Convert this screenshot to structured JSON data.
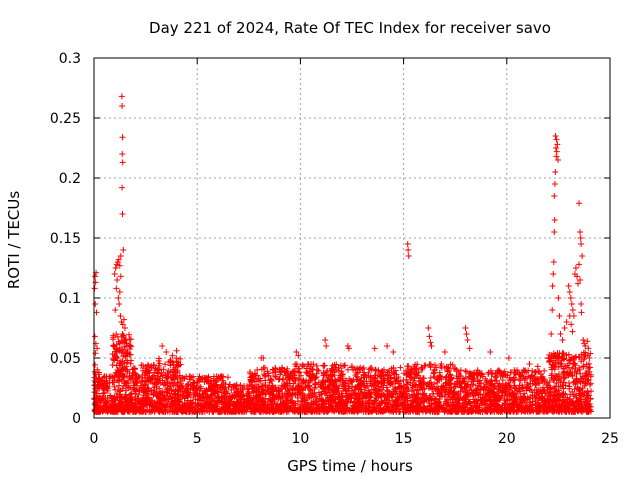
{
  "chart_data": {
    "type": "scatter",
    "title": "Day 221 of 2024, Rate Of TEC Index for receiver savo",
    "xlabel": "GPS time / hours",
    "ylabel": "ROTI / TECUs",
    "xlim": [
      0,
      25
    ],
    "ylim": [
      0,
      0.3
    ],
    "xticks": [
      0,
      5,
      10,
      15,
      20,
      25
    ],
    "yticks": [
      0,
      0.05,
      0.1,
      0.15,
      0.2,
      0.25,
      0.3
    ],
    "xtick_labels": [
      "0",
      "5",
      "10",
      "15",
      "20",
      "25"
    ],
    "ytick_labels": [
      "0",
      "0.05",
      "0.1",
      "0.15",
      "0.2",
      "0.25",
      "0.3"
    ],
    "grid": true,
    "marker": "+",
    "color": "#ff0000",
    "series": [
      {
        "name": "ROTI",
        "bands": [
          {
            "x0": 0.0,
            "x1": 0.3,
            "ymin": 0.005,
            "ymax": 0.045,
            "count": 70
          },
          {
            "x0": 0.3,
            "x1": 0.9,
            "ymin": 0.005,
            "ymax": 0.035,
            "count": 90
          },
          {
            "x0": 0.9,
            "x1": 1.8,
            "ymin": 0.005,
            "ymax": 0.07,
            "count": 260
          },
          {
            "x0": 1.8,
            "x1": 3.0,
            "ymin": 0.005,
            "ymax": 0.045,
            "count": 240
          },
          {
            "x0": 3.0,
            "x1": 4.2,
            "ymin": 0.005,
            "ymax": 0.05,
            "count": 230
          },
          {
            "x0": 4.2,
            "x1": 6.5,
            "ymin": 0.005,
            "ymax": 0.035,
            "count": 380
          },
          {
            "x0": 6.5,
            "x1": 7.5,
            "ymin": 0.005,
            "ymax": 0.028,
            "count": 160
          },
          {
            "x0": 7.5,
            "x1": 9.5,
            "ymin": 0.005,
            "ymax": 0.042,
            "count": 360
          },
          {
            "x0": 9.5,
            "x1": 12.5,
            "ymin": 0.005,
            "ymax": 0.045,
            "count": 520
          },
          {
            "x0": 12.5,
            "x1": 15.0,
            "ymin": 0.005,
            "ymax": 0.042,
            "count": 430
          },
          {
            "x0": 15.0,
            "x1": 17.5,
            "ymin": 0.005,
            "ymax": 0.045,
            "count": 430
          },
          {
            "x0": 17.5,
            "x1": 19.5,
            "ymin": 0.005,
            "ymax": 0.04,
            "count": 340
          },
          {
            "x0": 19.5,
            "x1": 22.0,
            "ymin": 0.005,
            "ymax": 0.04,
            "count": 420
          },
          {
            "x0": 22.0,
            "x1": 24.1,
            "ymin": 0.005,
            "ymax": 0.055,
            "count": 420
          }
        ],
        "points": [
          [
            0.05,
            0.118
          ],
          [
            0.08,
            0.113
          ],
          [
            0.1,
            0.121
          ],
          [
            0.03,
            0.108
          ],
          [
            0.06,
            0.095
          ],
          [
            0.12,
            0.088
          ],
          [
            0.04,
            0.068
          ],
          [
            0.09,
            0.062
          ],
          [
            0.15,
            0.058
          ],
          [
            0.07,
            0.054
          ],
          [
            1.0,
            0.12
          ],
          [
            1.05,
            0.125
          ],
          [
            1.1,
            0.128
          ],
          [
            1.15,
            0.13
          ],
          [
            1.2,
            0.132
          ],
          [
            1.25,
            0.127
          ],
          [
            1.3,
            0.135
          ],
          [
            1.12,
            0.115
          ],
          [
            1.08,
            0.108
          ],
          [
            1.18,
            0.1
          ],
          [
            1.22,
            0.095
          ],
          [
            1.03,
            0.09
          ],
          [
            1.28,
            0.085
          ],
          [
            1.33,
            0.08
          ],
          [
            1.4,
            0.078
          ],
          [
            1.45,
            0.082
          ],
          [
            1.5,
            0.075
          ],
          [
            1.38,
            0.07
          ],
          [
            1.35,
            0.268
          ],
          [
            1.36,
            0.26
          ],
          [
            1.38,
            0.234
          ],
          [
            1.37,
            0.22
          ],
          [
            1.39,
            0.213
          ],
          [
            1.36,
            0.192
          ],
          [
            1.38,
            0.17
          ],
          [
            1.42,
            0.14
          ],
          [
            1.3,
            0.118
          ],
          [
            1.25,
            0.105
          ],
          [
            1.55,
            0.065
          ],
          [
            1.6,
            0.06
          ],
          [
            3.3,
            0.06
          ],
          [
            3.5,
            0.055
          ],
          [
            3.8,
            0.052
          ],
          [
            4.0,
            0.056
          ],
          [
            8.1,
            0.05
          ],
          [
            8.2,
            0.05
          ],
          [
            9.8,
            0.055
          ],
          [
            9.9,
            0.052
          ],
          [
            11.2,
            0.065
          ],
          [
            11.25,
            0.06
          ],
          [
            12.3,
            0.06
          ],
          [
            12.35,
            0.058
          ],
          [
            13.6,
            0.058
          ],
          [
            14.2,
            0.06
          ],
          [
            14.5,
            0.055
          ],
          [
            15.2,
            0.145
          ],
          [
            15.22,
            0.14
          ],
          [
            15.25,
            0.135
          ],
          [
            16.2,
            0.075
          ],
          [
            16.25,
            0.068
          ],
          [
            16.3,
            0.063
          ],
          [
            16.35,
            0.06
          ],
          [
            17.0,
            0.055
          ],
          [
            18.0,
            0.075
          ],
          [
            18.05,
            0.07
          ],
          [
            18.1,
            0.065
          ],
          [
            18.2,
            0.058
          ],
          [
            19.2,
            0.055
          ],
          [
            20.1,
            0.05
          ],
          [
            21.1,
            0.045
          ],
          [
            21.5,
            0.043
          ],
          [
            22.15,
            0.07
          ],
          [
            22.2,
            0.09
          ],
          [
            22.22,
            0.11
          ],
          [
            22.25,
            0.12
          ],
          [
            22.28,
            0.13
          ],
          [
            22.3,
            0.155
          ],
          [
            22.32,
            0.165
          ],
          [
            22.3,
            0.185
          ],
          [
            22.33,
            0.195
          ],
          [
            22.35,
            0.205
          ],
          [
            22.4,
            0.218
          ],
          [
            22.42,
            0.222
          ],
          [
            22.38,
            0.225
          ],
          [
            22.41,
            0.232
          ],
          [
            22.36,
            0.235
          ],
          [
            22.45,
            0.228
          ],
          [
            22.48,
            0.215
          ],
          [
            22.5,
            0.1
          ],
          [
            22.55,
            0.085
          ],
          [
            22.6,
            0.07
          ],
          [
            22.7,
            0.065
          ],
          [
            22.8,
            0.075
          ],
          [
            22.9,
            0.08
          ],
          [
            23.0,
            0.11
          ],
          [
            23.05,
            0.105
          ],
          [
            23.1,
            0.1
          ],
          [
            23.15,
            0.095
          ],
          [
            23.2,
            0.09
          ],
          [
            23.25,
            0.085
          ],
          [
            23.05,
            0.085
          ],
          [
            23.12,
            0.078
          ],
          [
            23.18,
            0.072
          ],
          [
            23.3,
            0.12
          ],
          [
            23.35,
            0.125
          ],
          [
            23.4,
            0.118
          ],
          [
            23.45,
            0.112
          ],
          [
            23.5,
            0.128
          ],
          [
            23.55,
            0.115
          ],
          [
            23.6,
            0.095
          ],
          [
            23.62,
            0.088
          ],
          [
            23.5,
            0.179
          ],
          [
            23.55,
            0.155
          ],
          [
            23.58,
            0.15
          ],
          [
            23.6,
            0.145
          ],
          [
            23.65,
            0.135
          ],
          [
            23.7,
            0.065
          ],
          [
            23.75,
            0.062
          ],
          [
            23.8,
            0.06
          ],
          [
            23.9,
            0.064
          ],
          [
            23.95,
            0.058
          ],
          [
            24.0,
            0.05
          ]
        ]
      }
    ]
  }
}
